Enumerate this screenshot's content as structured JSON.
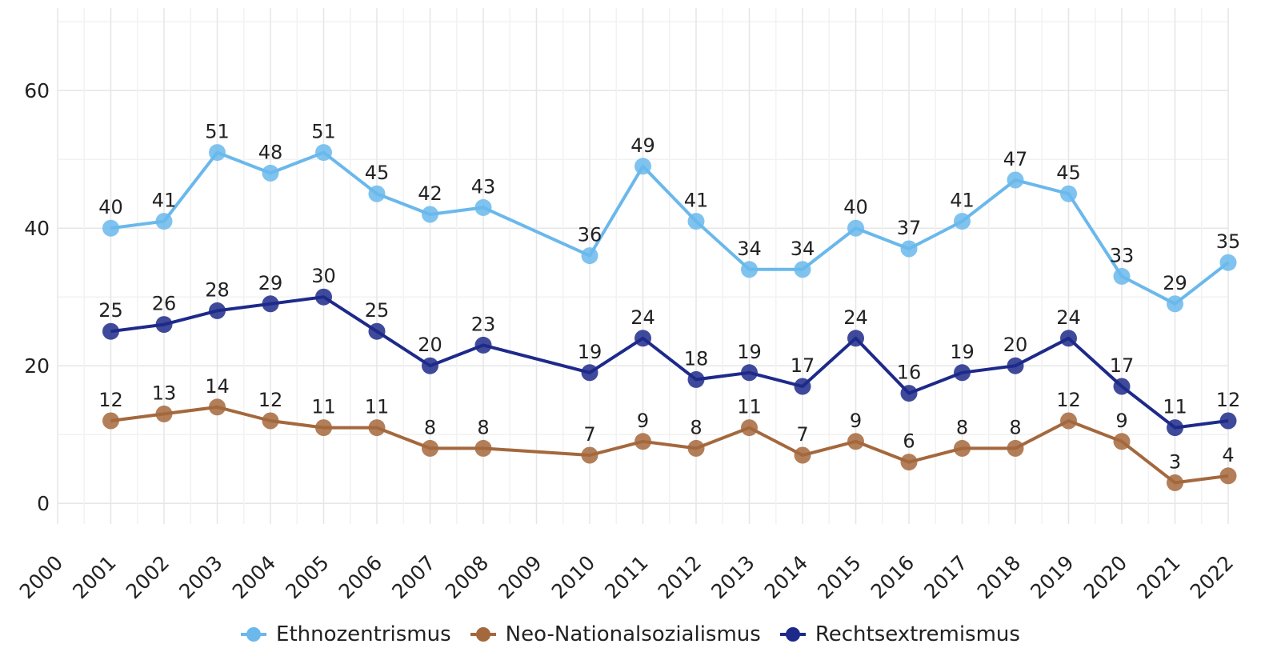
{
  "chart_data": {
    "type": "line",
    "title": "",
    "xlabel": "",
    "ylabel": "",
    "x": [
      2000,
      2001,
      2002,
      2003,
      2004,
      2005,
      2006,
      2007,
      2008,
      2009,
      2010,
      2011,
      2012,
      2013,
      2014,
      2015,
      2016,
      2017,
      2018,
      2019,
      2020,
      2021,
      2022
    ],
    "x_tick_labels": [
      "2000",
      "2001",
      "2002",
      "2003",
      "2004",
      "2005",
      "2006",
      "2007",
      "2008",
      "2009",
      "2010",
      "2011",
      "2012",
      "2013",
      "2014",
      "2015",
      "2016",
      "2017",
      "2018",
      "2019",
      "2020",
      "2021",
      "2022"
    ],
    "y_ticks": [
      0,
      20,
      40,
      60
    ],
    "ylim": [
      -3,
      72
    ],
    "xlim": [
      2000,
      2022
    ],
    "grid": true,
    "legend_position": "bottom",
    "series": [
      {
        "name": "Ethnozentrismus",
        "color": "#6ab8ec",
        "points": [
          [
            2001,
            40
          ],
          [
            2002,
            41
          ],
          [
            2003,
            51
          ],
          [
            2004,
            48
          ],
          [
            2005,
            51
          ],
          [
            2006,
            45
          ],
          [
            2007,
            42
          ],
          [
            2008,
            43
          ],
          [
            2010,
            36
          ],
          [
            2011,
            49
          ],
          [
            2012,
            41
          ],
          [
            2013,
            34
          ],
          [
            2014,
            34
          ],
          [
            2015,
            40
          ],
          [
            2016,
            37
          ],
          [
            2017,
            41
          ],
          [
            2018,
            47
          ],
          [
            2019,
            45
          ],
          [
            2020,
            33
          ],
          [
            2021,
            29
          ],
          [
            2022,
            35
          ]
        ]
      },
      {
        "name": "Neo-Nationalsozialismus",
        "color": "#a4683d",
        "points": [
          [
            2001,
            12
          ],
          [
            2002,
            13
          ],
          [
            2003,
            14
          ],
          [
            2004,
            12
          ],
          [
            2005,
            11
          ],
          [
            2006,
            11
          ],
          [
            2007,
            8
          ],
          [
            2008,
            8
          ],
          [
            2010,
            7
          ],
          [
            2011,
            9
          ],
          [
            2012,
            8
          ],
          [
            2013,
            11
          ],
          [
            2014,
            7
          ],
          [
            2015,
            9
          ],
          [
            2016,
            6
          ],
          [
            2017,
            8
          ],
          [
            2018,
            8
          ],
          [
            2019,
            12
          ],
          [
            2020,
            9
          ],
          [
            2021,
            3
          ],
          [
            2022,
            4
          ]
        ]
      },
      {
        "name": "Rechtsextremismus",
        "color": "#1e2a8a",
        "points": [
          [
            2001,
            25
          ],
          [
            2002,
            26
          ],
          [
            2003,
            28
          ],
          [
            2004,
            29
          ],
          [
            2005,
            30
          ],
          [
            2006,
            25
          ],
          [
            2007,
            20
          ],
          [
            2008,
            23
          ],
          [
            2010,
            19
          ],
          [
            2011,
            24
          ],
          [
            2012,
            18
          ],
          [
            2013,
            19
          ],
          [
            2014,
            17
          ],
          [
            2015,
            24
          ],
          [
            2016,
            16
          ],
          [
            2017,
            19
          ],
          [
            2018,
            20
          ],
          [
            2019,
            24
          ],
          [
            2020,
            17
          ],
          [
            2021,
            11
          ],
          [
            2022,
            12
          ]
        ]
      }
    ]
  }
}
